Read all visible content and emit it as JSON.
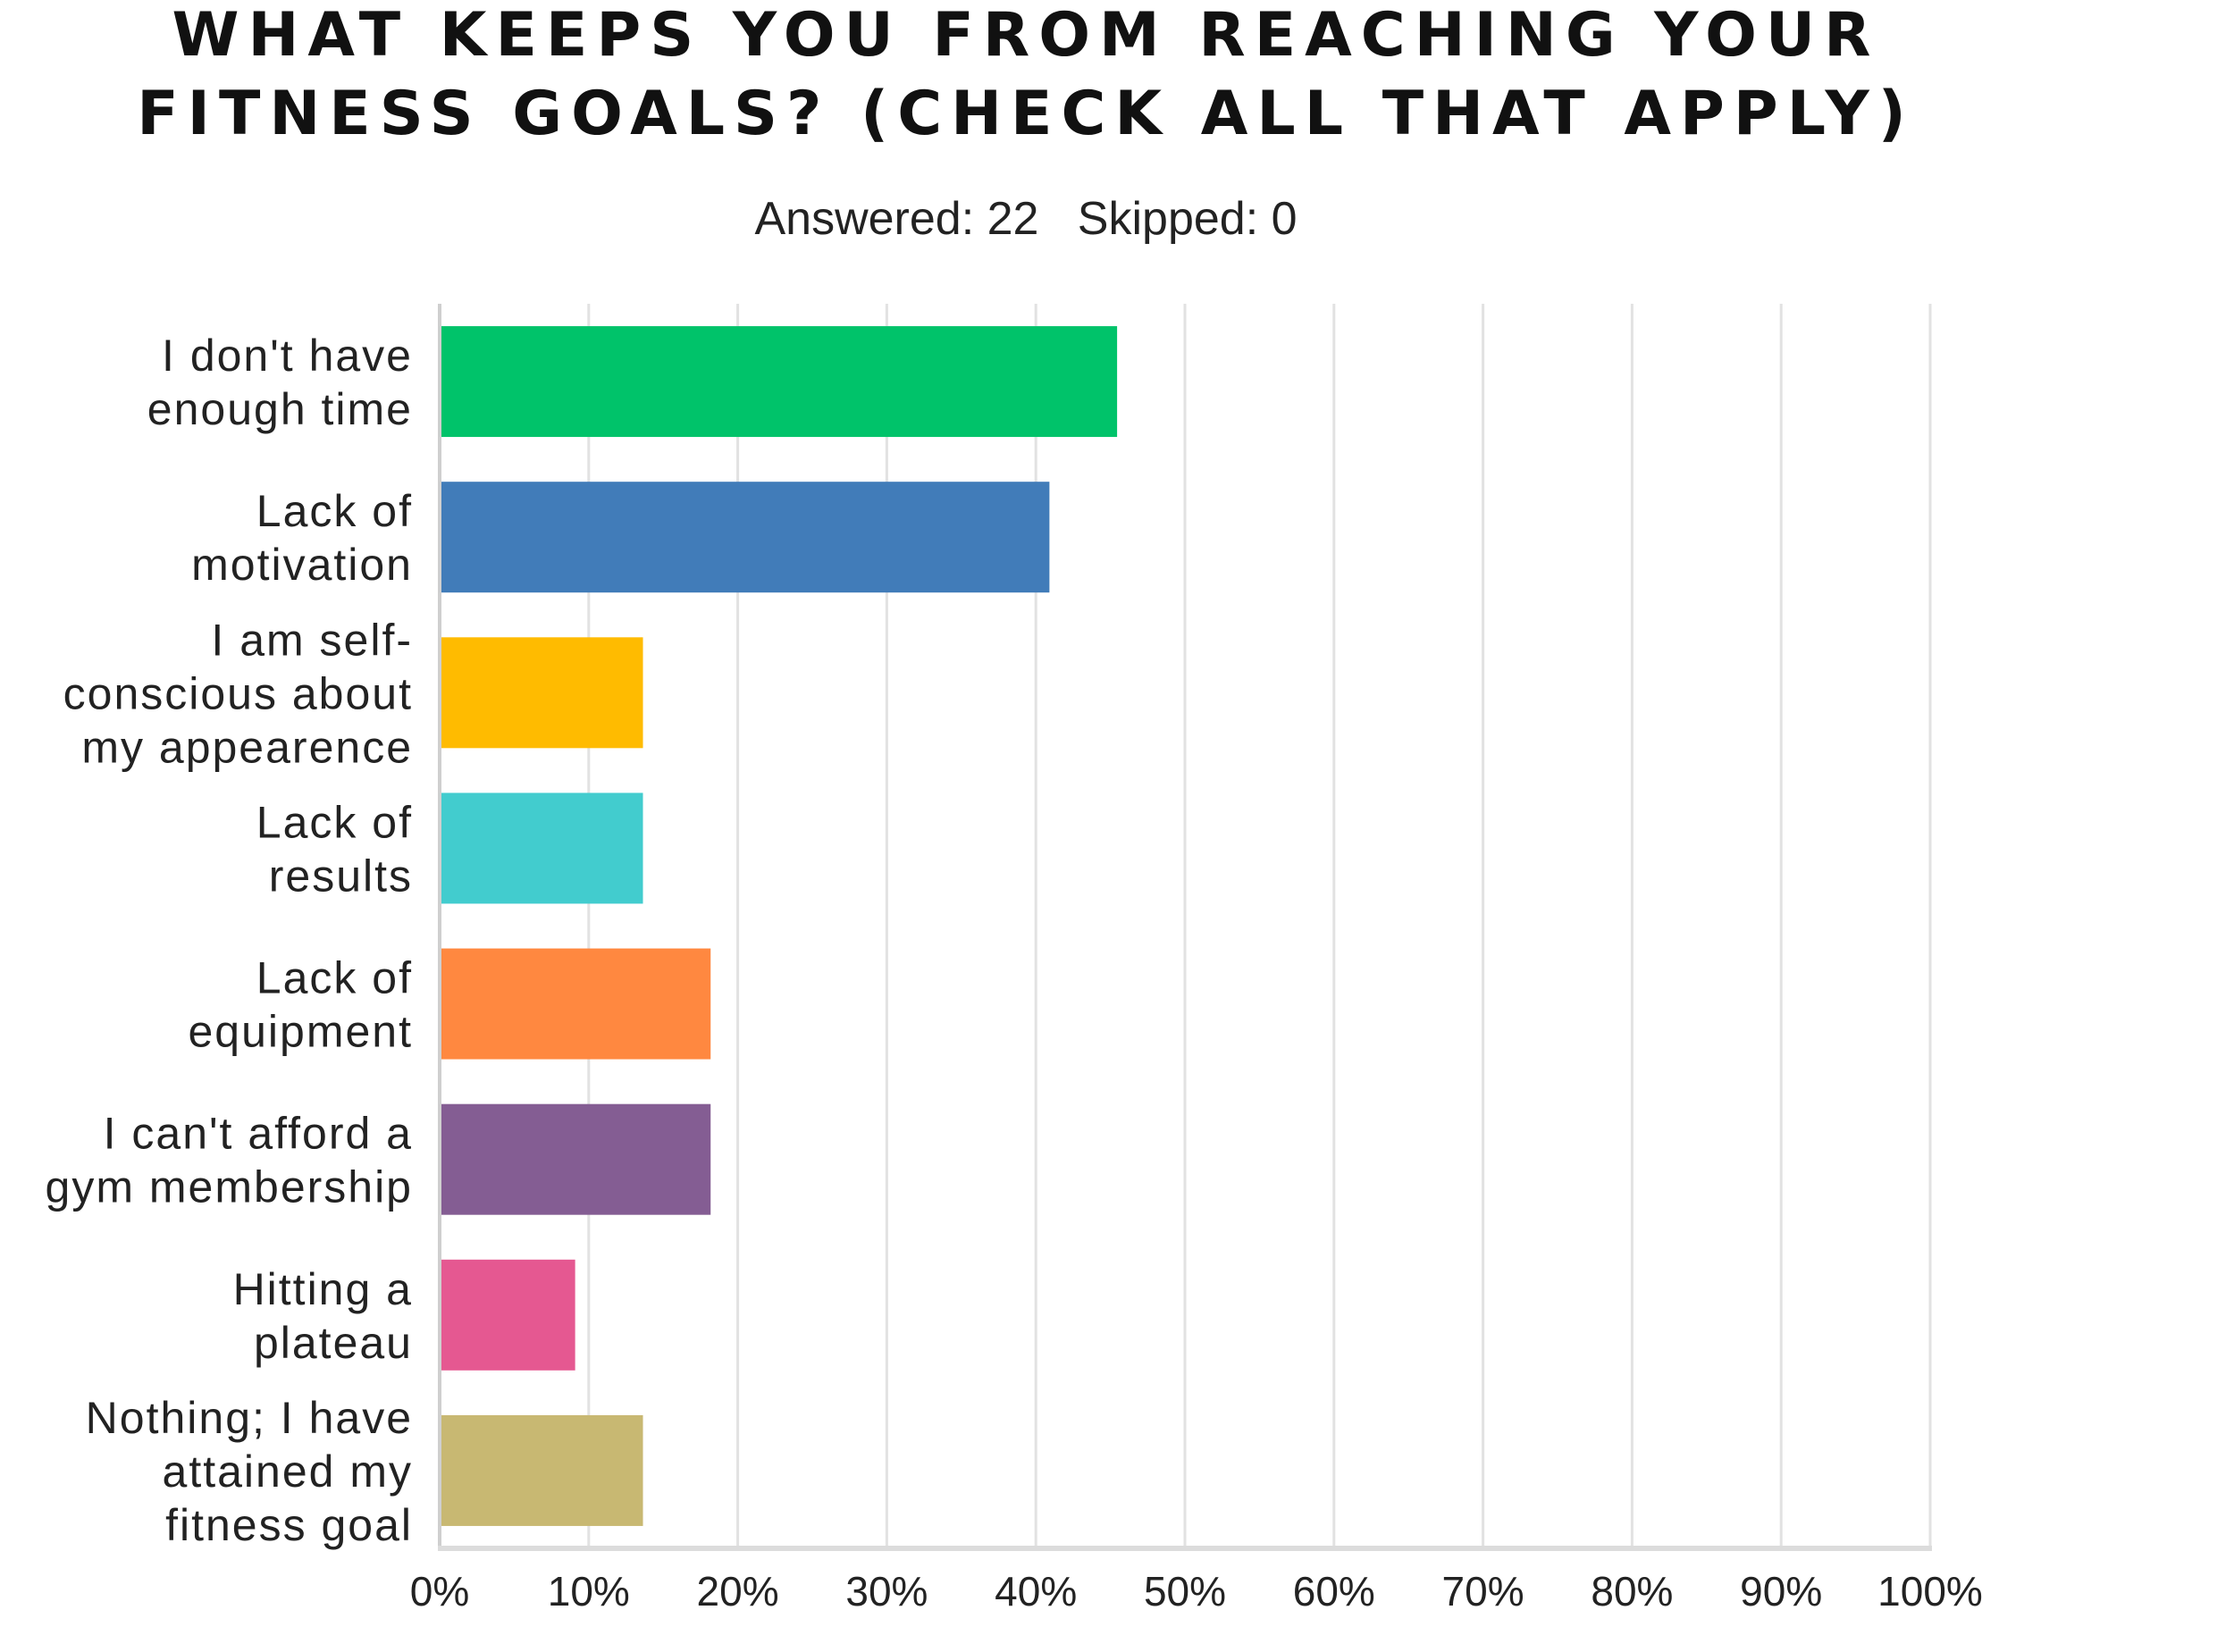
{
  "title_lines": [
    "WHAT KEEPS YOU FROM REACHING YOUR",
    "FITNESS GOALS? (CHECK ALL THAT APPLY)"
  ],
  "answered_label": "Answered: 22",
  "skipped_label": "Skipped: 0",
  "chart_data": {
    "type": "bar",
    "orientation": "horizontal",
    "title": "WHAT KEEPS YOU FROM REACHING YOUR FITNESS GOALS? (CHECK ALL THAT APPLY)",
    "categories": [
      [
        "I don't have",
        "enough time"
      ],
      [
        "Lack of",
        "motivation"
      ],
      [
        "I am self-",
        "conscious about",
        "my appearence"
      ],
      [
        "Lack of",
        "results"
      ],
      [
        "Lack of",
        "equipment"
      ],
      [
        "I can't afford a",
        "gym membership"
      ],
      [
        "Hitting a",
        "plateau"
      ],
      [
        "Nothing; I have",
        "attained my",
        "fitness goal"
      ]
    ],
    "values": [
      45.45,
      40.91,
      13.64,
      13.64,
      18.18,
      18.18,
      9.09,
      13.64
    ],
    "colors": [
      "#00c36a",
      "#417cb9",
      "#ffbb00",
      "#42ccce",
      "#ff8840",
      "#845d93",
      "#e55891",
      "#c8b872"
    ],
    "xlim": [
      0,
      100
    ],
    "xticks": [
      "0%",
      "10%",
      "20%",
      "30%",
      "40%",
      "50%",
      "60%",
      "70%",
      "80%",
      "90%",
      "100%"
    ],
    "grid": true,
    "xlabel": "",
    "ylabel": ""
  }
}
